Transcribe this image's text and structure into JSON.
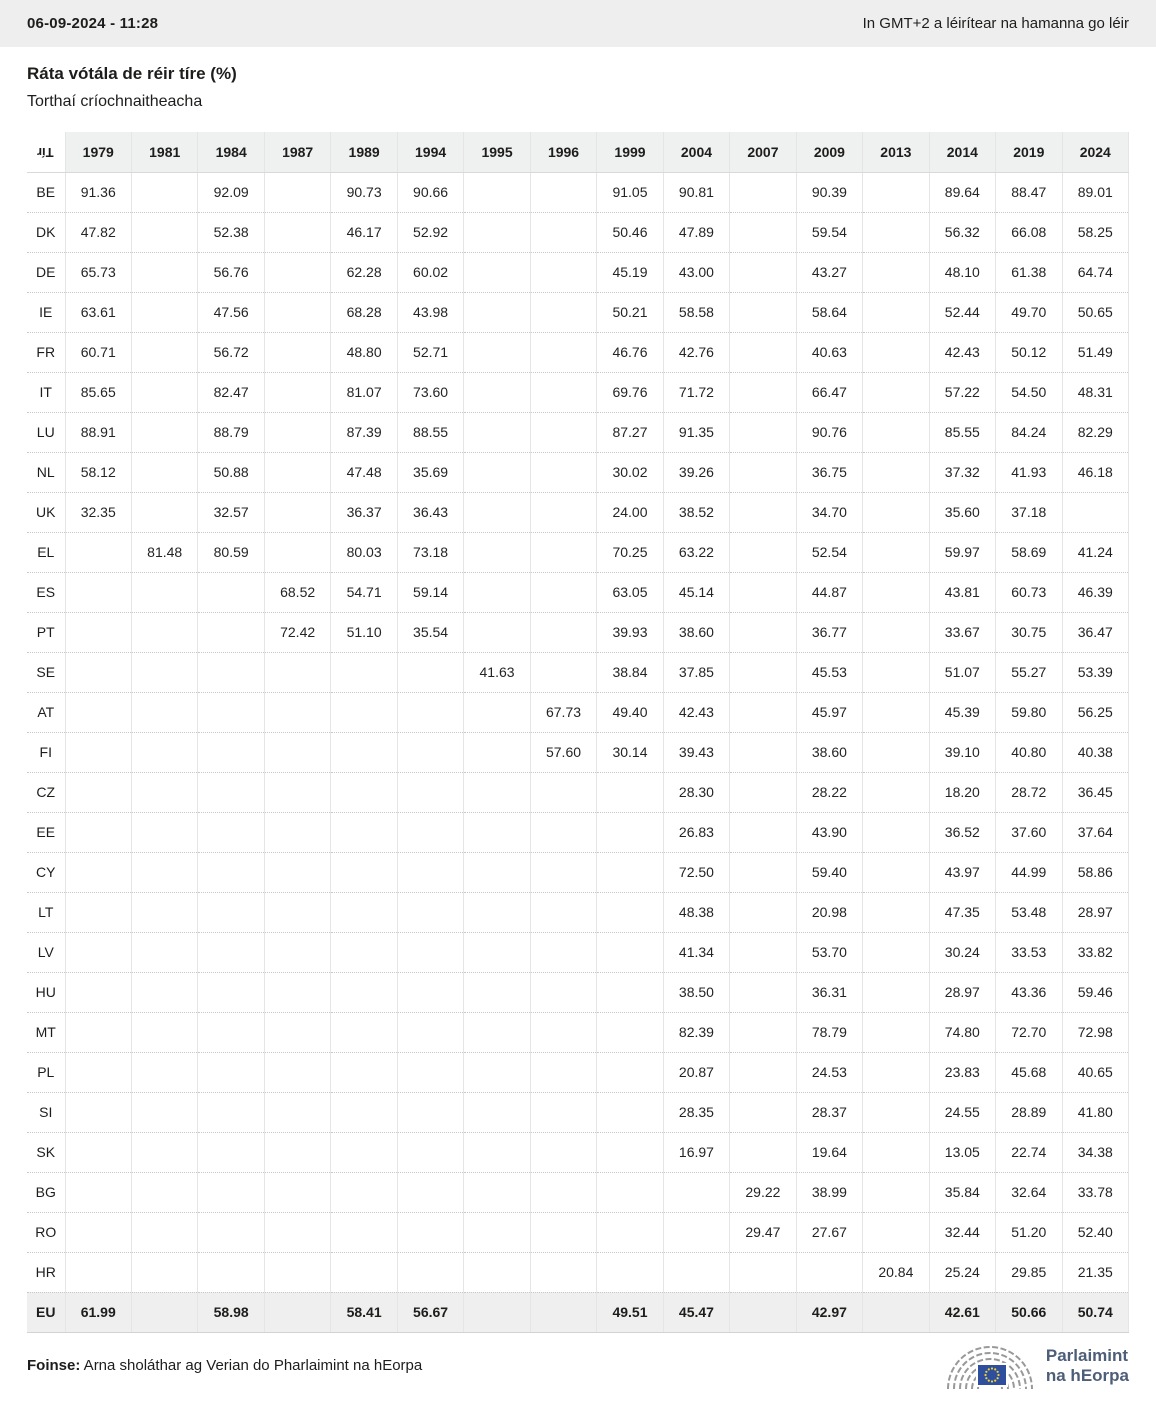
{
  "meta": {
    "datetime": "06-09-2024 - 11:28",
    "timezone_note": "In GMT+2 a léirítear na hamanna go léir"
  },
  "page": {
    "title": "Ráta vótála de réir tíre (%)",
    "subtitle": "Torthaí críochnaitheacha"
  },
  "chart_data": {
    "type": "table",
    "title": "Ráta vótála de réir tíre (%)",
    "subtitle": "Torthaí críochnaitheacha",
    "corner_label": "Tír",
    "columns": [
      "1979",
      "1981",
      "1984",
      "1987",
      "1989",
      "1994",
      "1995",
      "1996",
      "1999",
      "2004",
      "2007",
      "2009",
      "2013",
      "2014",
      "2019",
      "2024"
    ],
    "rows": [
      {
        "country": "BE",
        "values": [
          "91.36",
          "",
          "92.09",
          "",
          "90.73",
          "90.66",
          "",
          "",
          "91.05",
          "90.81",
          "",
          "90.39",
          "",
          "89.64",
          "88.47",
          "89.01"
        ]
      },
      {
        "country": "DK",
        "values": [
          "47.82",
          "",
          "52.38",
          "",
          "46.17",
          "52.92",
          "",
          "",
          "50.46",
          "47.89",
          "",
          "59.54",
          "",
          "56.32",
          "66.08",
          "58.25"
        ]
      },
      {
        "country": "DE",
        "values": [
          "65.73",
          "",
          "56.76",
          "",
          "62.28",
          "60.02",
          "",
          "",
          "45.19",
          "43.00",
          "",
          "43.27",
          "",
          "48.10",
          "61.38",
          "64.74"
        ]
      },
      {
        "country": "IE",
        "values": [
          "63.61",
          "",
          "47.56",
          "",
          "68.28",
          "43.98",
          "",
          "",
          "50.21",
          "58.58",
          "",
          "58.64",
          "",
          "52.44",
          "49.70",
          "50.65"
        ]
      },
      {
        "country": "FR",
        "values": [
          "60.71",
          "",
          "56.72",
          "",
          "48.80",
          "52.71",
          "",
          "",
          "46.76",
          "42.76",
          "",
          "40.63",
          "",
          "42.43",
          "50.12",
          "51.49"
        ]
      },
      {
        "country": "IT",
        "values": [
          "85.65",
          "",
          "82.47",
          "",
          "81.07",
          "73.60",
          "",
          "",
          "69.76",
          "71.72",
          "",
          "66.47",
          "",
          "57.22",
          "54.50",
          "48.31"
        ]
      },
      {
        "country": "LU",
        "values": [
          "88.91",
          "",
          "88.79",
          "",
          "87.39",
          "88.55",
          "",
          "",
          "87.27",
          "91.35",
          "",
          "90.76",
          "",
          "85.55",
          "84.24",
          "82.29"
        ]
      },
      {
        "country": "NL",
        "values": [
          "58.12",
          "",
          "50.88",
          "",
          "47.48",
          "35.69",
          "",
          "",
          "30.02",
          "39.26",
          "",
          "36.75",
          "",
          "37.32",
          "41.93",
          "46.18"
        ]
      },
      {
        "country": "UK",
        "values": [
          "32.35",
          "",
          "32.57",
          "",
          "36.37",
          "36.43",
          "",
          "",
          "24.00",
          "38.52",
          "",
          "34.70",
          "",
          "35.60",
          "37.18",
          ""
        ]
      },
      {
        "country": "EL",
        "values": [
          "",
          "81.48",
          "80.59",
          "",
          "80.03",
          "73.18",
          "",
          "",
          "70.25",
          "63.22",
          "",
          "52.54",
          "",
          "59.97",
          "58.69",
          "41.24"
        ]
      },
      {
        "country": "ES",
        "values": [
          "",
          "",
          "",
          "68.52",
          "54.71",
          "59.14",
          "",
          "",
          "63.05",
          "45.14",
          "",
          "44.87",
          "",
          "43.81",
          "60.73",
          "46.39"
        ]
      },
      {
        "country": "PT",
        "values": [
          "",
          "",
          "",
          "72.42",
          "51.10",
          "35.54",
          "",
          "",
          "39.93",
          "38.60",
          "",
          "36.77",
          "",
          "33.67",
          "30.75",
          "36.47"
        ]
      },
      {
        "country": "SE",
        "values": [
          "",
          "",
          "",
          "",
          "",
          "",
          "41.63",
          "",
          "38.84",
          "37.85",
          "",
          "45.53",
          "",
          "51.07",
          "55.27",
          "53.39"
        ]
      },
      {
        "country": "AT",
        "values": [
          "",
          "",
          "",
          "",
          "",
          "",
          "",
          "67.73",
          "49.40",
          "42.43",
          "",
          "45.97",
          "",
          "45.39",
          "59.80",
          "56.25"
        ]
      },
      {
        "country": "FI",
        "values": [
          "",
          "",
          "",
          "",
          "",
          "",
          "",
          "57.60",
          "30.14",
          "39.43",
          "",
          "38.60",
          "",
          "39.10",
          "40.80",
          "40.38"
        ]
      },
      {
        "country": "CZ",
        "values": [
          "",
          "",
          "",
          "",
          "",
          "",
          "",
          "",
          "",
          "28.30",
          "",
          "28.22",
          "",
          "18.20",
          "28.72",
          "36.45"
        ]
      },
      {
        "country": "EE",
        "values": [
          "",
          "",
          "",
          "",
          "",
          "",
          "",
          "",
          "",
          "26.83",
          "",
          "43.90",
          "",
          "36.52",
          "37.60",
          "37.64"
        ]
      },
      {
        "country": "CY",
        "values": [
          "",
          "",
          "",
          "",
          "",
          "",
          "",
          "",
          "",
          "72.50",
          "",
          "59.40",
          "",
          "43.97",
          "44.99",
          "58.86"
        ]
      },
      {
        "country": "LT",
        "values": [
          "",
          "",
          "",
          "",
          "",
          "",
          "",
          "",
          "",
          "48.38",
          "",
          "20.98",
          "",
          "47.35",
          "53.48",
          "28.97"
        ]
      },
      {
        "country": "LV",
        "values": [
          "",
          "",
          "",
          "",
          "",
          "",
          "",
          "",
          "",
          "41.34",
          "",
          "53.70",
          "",
          "30.24",
          "33.53",
          "33.82"
        ]
      },
      {
        "country": "HU",
        "values": [
          "",
          "",
          "",
          "",
          "",
          "",
          "",
          "",
          "",
          "38.50",
          "",
          "36.31",
          "",
          "28.97",
          "43.36",
          "59.46"
        ]
      },
      {
        "country": "MT",
        "values": [
          "",
          "",
          "",
          "",
          "",
          "",
          "",
          "",
          "",
          "82.39",
          "",
          "78.79",
          "",
          "74.80",
          "72.70",
          "72.98"
        ]
      },
      {
        "country": "PL",
        "values": [
          "",
          "",
          "",
          "",
          "",
          "",
          "",
          "",
          "",
          "20.87",
          "",
          "24.53",
          "",
          "23.83",
          "45.68",
          "40.65"
        ]
      },
      {
        "country": "SI",
        "values": [
          "",
          "",
          "",
          "",
          "",
          "",
          "",
          "",
          "",
          "28.35",
          "",
          "28.37",
          "",
          "24.55",
          "28.89",
          "41.80"
        ]
      },
      {
        "country": "SK",
        "values": [
          "",
          "",
          "",
          "",
          "",
          "",
          "",
          "",
          "",
          "16.97",
          "",
          "19.64",
          "",
          "13.05",
          "22.74",
          "34.38"
        ]
      },
      {
        "country": "BG",
        "values": [
          "",
          "",
          "",
          "",
          "",
          "",
          "",
          "",
          "",
          "",
          "29.22",
          "38.99",
          "",
          "35.84",
          "32.64",
          "33.78"
        ]
      },
      {
        "country": "RO",
        "values": [
          "",
          "",
          "",
          "",
          "",
          "",
          "",
          "",
          "",
          "",
          "29.47",
          "27.67",
          "",
          "32.44",
          "51.20",
          "52.40"
        ]
      },
      {
        "country": "HR",
        "values": [
          "",
          "",
          "",
          "",
          "",
          "",
          "",
          "",
          "",
          "",
          "",
          "",
          "20.84",
          "25.24",
          "29.85",
          "21.35"
        ]
      },
      {
        "country": "EU",
        "values": [
          "61.99",
          "",
          "58.98",
          "",
          "58.41",
          "56.67",
          "",
          "",
          "49.51",
          "45.47",
          "",
          "42.97",
          "",
          "42.61",
          "50.66",
          "50.74"
        ],
        "is_summary": true
      }
    ]
  },
  "footer": {
    "source_label": "Foinse:",
    "source_text": " Arna sholáthar ag Verian do Pharlaimint na hEorpa",
    "logo_line1": "Parlaimint",
    "logo_line2": "na hEorpa"
  },
  "colors": {
    "strip_bg": "#eeeeee",
    "header_bg": "#eff0f0",
    "summary_row_bg": "#efefef",
    "flag_blue": "#2d4f9e",
    "star_yellow": "#f8d12e",
    "hemicycle_gray": "#97999b",
    "logo_text": "#4d5e78"
  }
}
